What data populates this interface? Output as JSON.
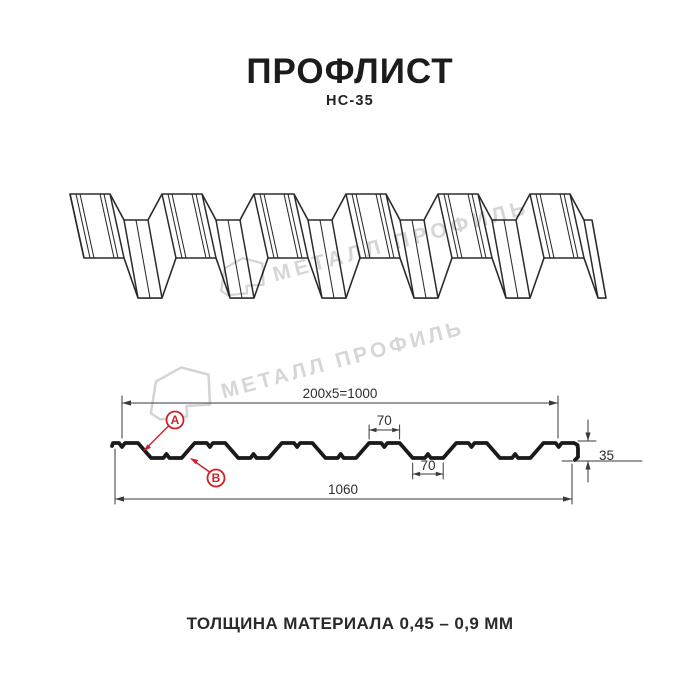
{
  "header": {
    "title": "ПРОФЛИСТ",
    "model": "НС-35"
  },
  "watermark": {
    "text": "МЕТАЛЛ ПРОФИЛЬ",
    "color": "#d6d6d6",
    "logo": "metall-profil-emblem"
  },
  "section_diagram": {
    "dim_top": "200x5=1000",
    "dim_crest": "70",
    "dim_trough": "70",
    "dim_total": "1060",
    "dim_height": "35",
    "label_a": "A",
    "label_b": "B"
  },
  "footer": {
    "note": "ТОЛЩИНА МАТЕРИАЛА 0,45 – 0,9 ММ"
  },
  "colors": {
    "line": "#2b2b2b",
    "profile": "#1a1a1a",
    "dimension": "#3a3a3a",
    "red": "#cf2027",
    "watermark": "#d6d6d6",
    "background": "#ffffff"
  }
}
